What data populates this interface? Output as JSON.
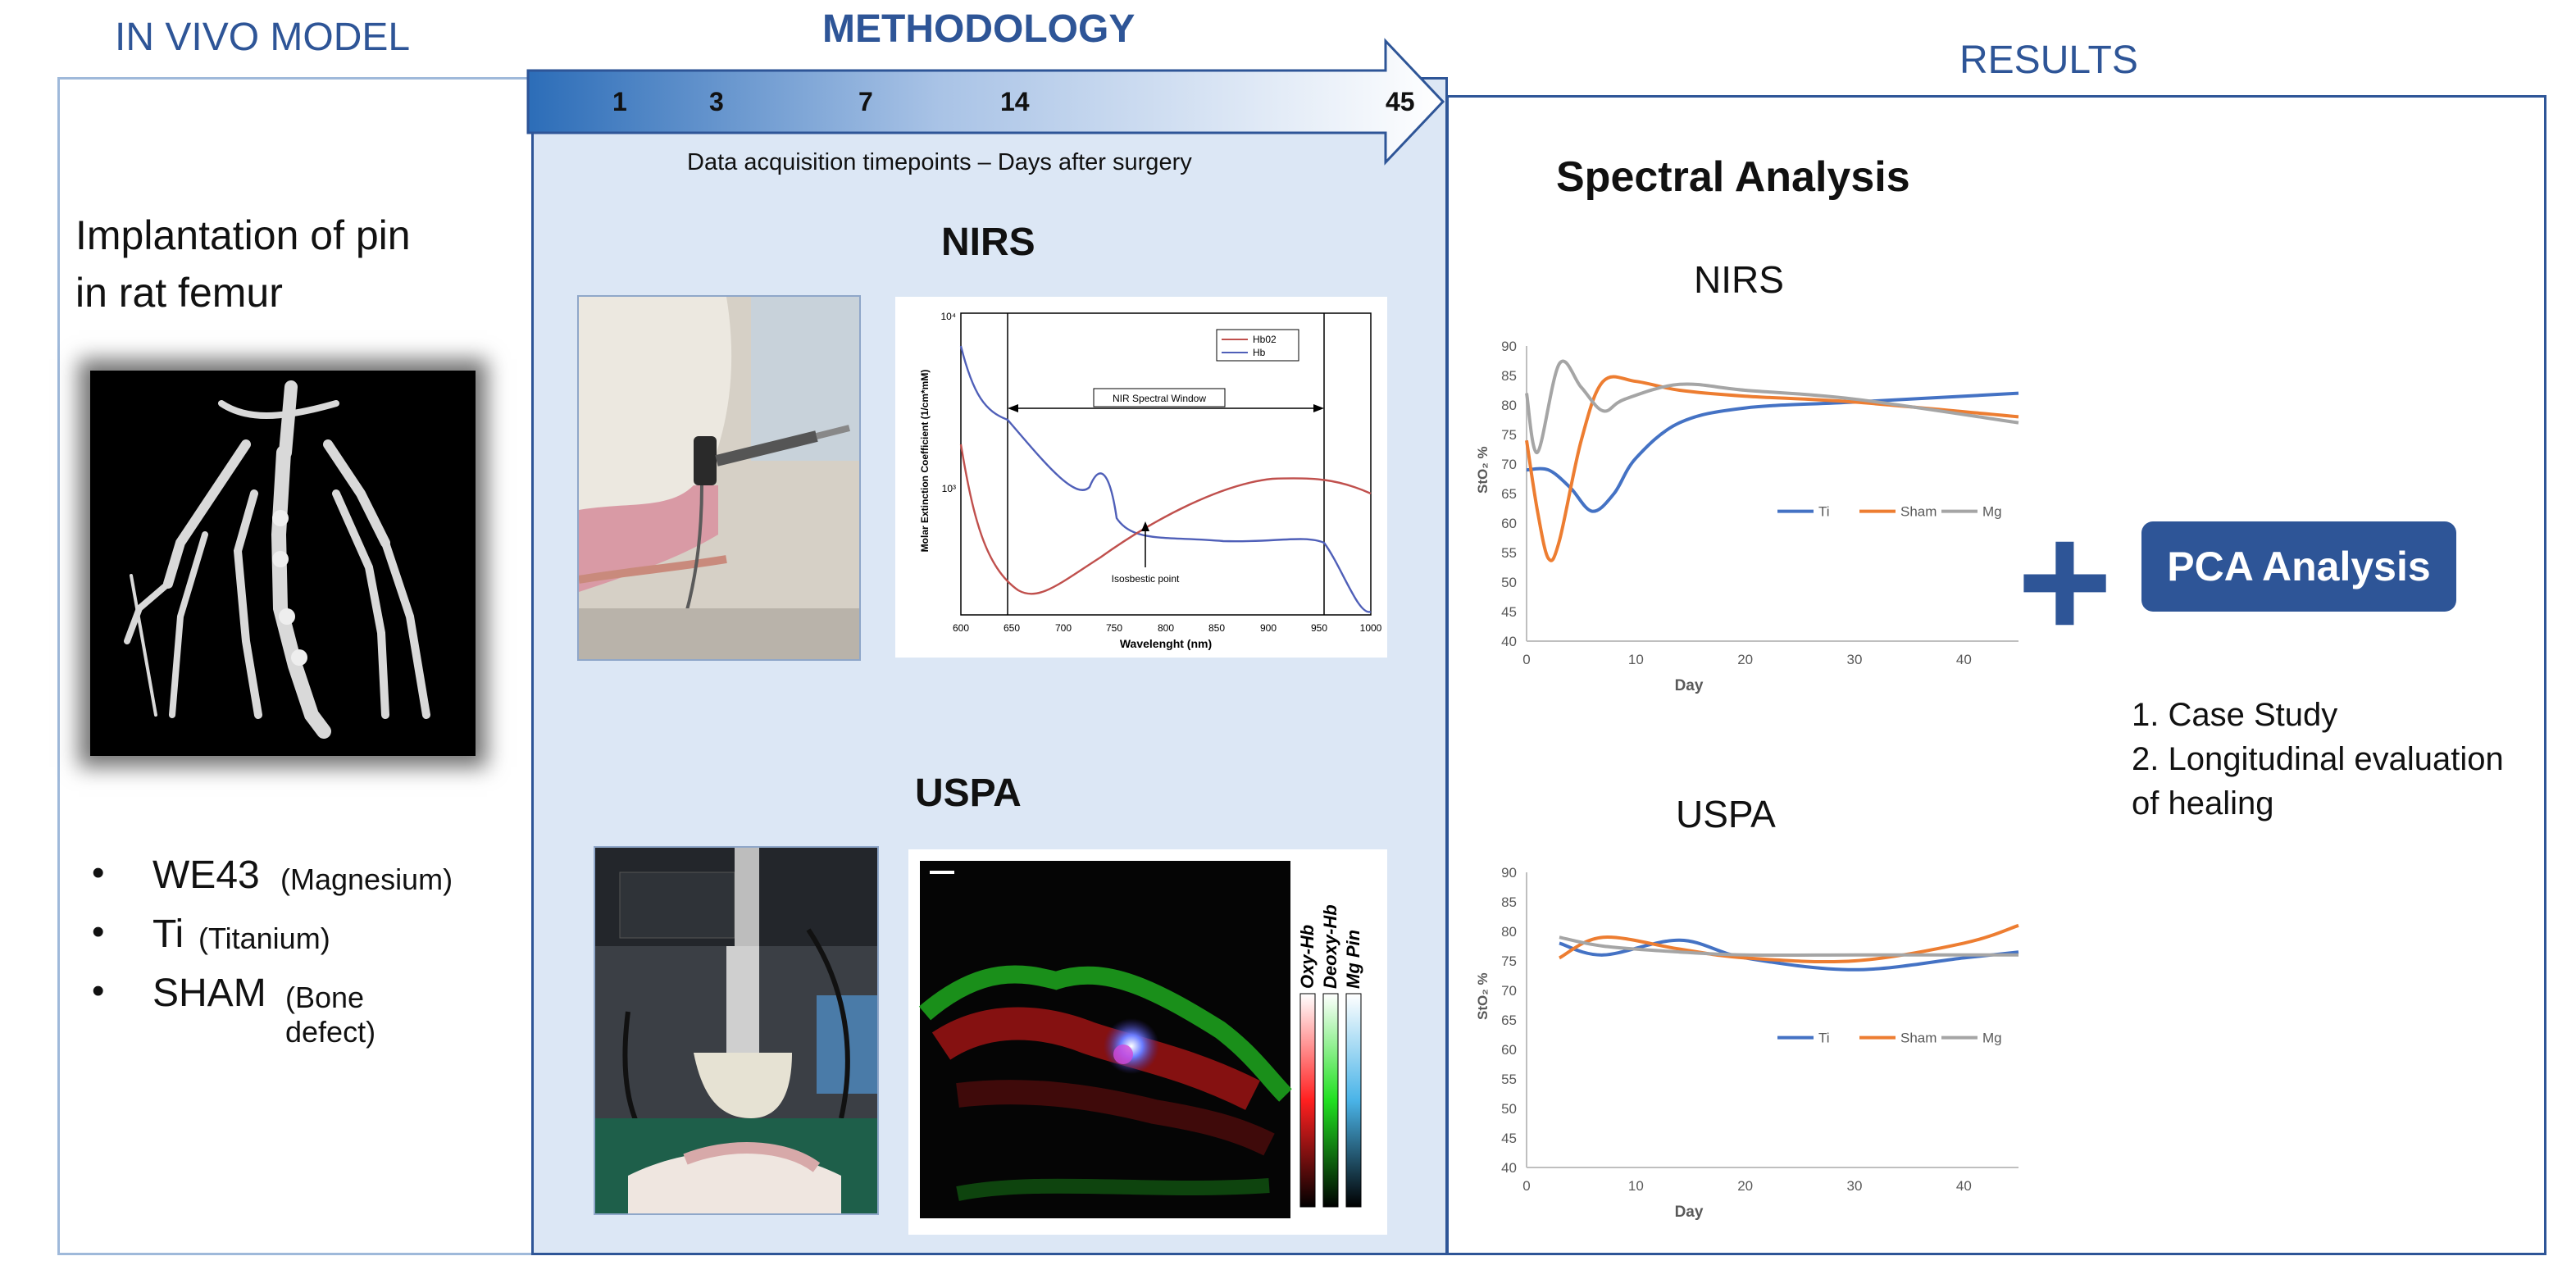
{
  "headers": {
    "in_vivo": "IN VIVO MODEL",
    "methodology": "METHODOLOGY",
    "results": "RESULTS"
  },
  "timeline": {
    "days": [
      "1",
      "3",
      "7",
      "14",
      "45"
    ],
    "caption": "Data acquisition timepoints  – Days after surgery"
  },
  "in_vivo": {
    "title_line1": "Implantation of pin",
    "title_line2": "in rat femur",
    "groups": [
      {
        "name": "WE43",
        "detail": "(Magnesium)"
      },
      {
        "name": "Ti",
        "detail": "(Titanium)"
      },
      {
        "name": "SHAM",
        "detail": "(Bone defect)"
      }
    ],
    "bullet": "•"
  },
  "methodology": {
    "nirs_label": "NIRS",
    "uspa_label": "USPA",
    "nirs_plot": {
      "legend": [
        "Hb02",
        "Hb"
      ],
      "window_label": "NIR Spectral Window",
      "isosbestic_label": "Isosbestic point",
      "xlabel": "Wavelenght (nm)",
      "ylabel": "Molar Extinction Coefficient (1/cm*mM)",
      "ytick_top": "10⁴",
      "ytick_mid": "10³",
      "xticks": [
        "600",
        "650",
        "700",
        "750",
        "800",
        "850",
        "900",
        "950",
        "1000"
      ]
    },
    "uspa_image": {
      "colorbar_labels": [
        "Oxy-Hb",
        "Deoxy-Hb",
        "Mg Pin"
      ]
    }
  },
  "results": {
    "spectral_title": "Spectral Analysis",
    "nirs_title": "NIRS",
    "uspa_title": "USPA",
    "plus": "+",
    "pca_button": "PCA Analysis",
    "list": [
      "1.  Case Study",
      "2. Longitudinal evaluation",
      "of healing"
    ]
  },
  "colors": {
    "accent": "#2e5597",
    "ti": "#4472c4",
    "sham": "#ed7d31",
    "mg": "#a5a5a5",
    "hbo2": "#c0504d",
    "hb": "#4f5fb8"
  },
  "chart_data": [
    {
      "type": "line",
      "title": "NIRS",
      "xlabel": "Day",
      "ylabel": "StO₂ %",
      "xlim": [
        0,
        45
      ],
      "ylim": [
        40,
        90
      ],
      "xticks": [
        0,
        10,
        20,
        30,
        40
      ],
      "yticks": [
        40,
        45,
        50,
        55,
        60,
        65,
        70,
        75,
        80,
        85,
        90
      ],
      "legend_position": "right-middle",
      "series": [
        {
          "name": "Ti",
          "x": [
            0,
            2,
            4,
            6,
            8,
            10,
            14,
            20,
            30,
            45
          ],
          "y": [
            69,
            69,
            66,
            62,
            65,
            71,
            77,
            79.5,
            80.5,
            82
          ]
        },
        {
          "name": "Sham",
          "x": [
            0,
            1,
            2,
            3,
            5,
            7,
            10,
            14,
            20,
            30,
            45
          ],
          "y": [
            74,
            62,
            54,
            57,
            74,
            84,
            84,
            82.5,
            81.5,
            80.5,
            78
          ]
        },
        {
          "name": "Mg",
          "x": [
            0,
            1,
            3,
            5,
            7,
            9,
            14,
            20,
            30,
            45
          ],
          "y": [
            82,
            72,
            87,
            83,
            79,
            81,
            83.5,
            82.5,
            81,
            77
          ]
        }
      ]
    },
    {
      "type": "line",
      "title": "USPA",
      "xlabel": "Day",
      "ylabel": "StO₂ %",
      "xlim": [
        0,
        45
      ],
      "ylim": [
        40,
        90
      ],
      "xticks": [
        0,
        10,
        20,
        30,
        40
      ],
      "yticks": [
        40,
        45,
        50,
        55,
        60,
        65,
        70,
        75,
        80,
        85,
        90
      ],
      "legend_position": "right-middle",
      "series": [
        {
          "name": "Ti",
          "x": [
            3,
            7,
            14,
            20,
            30,
            40,
            45
          ],
          "y": [
            78,
            76,
            78.5,
            75.5,
            73.5,
            75.5,
            76.5
          ]
        },
        {
          "name": "Sham",
          "x": [
            3,
            7,
            14,
            20,
            30,
            40,
            45
          ],
          "y": [
            75.5,
            79,
            77,
            75.5,
            75,
            78,
            81
          ]
        },
        {
          "name": "Mg",
          "x": [
            3,
            7,
            14,
            20,
            30,
            40,
            45
          ],
          "y": [
            79,
            77.5,
            76.5,
            76,
            76,
            76,
            76
          ]
        }
      ]
    }
  ]
}
